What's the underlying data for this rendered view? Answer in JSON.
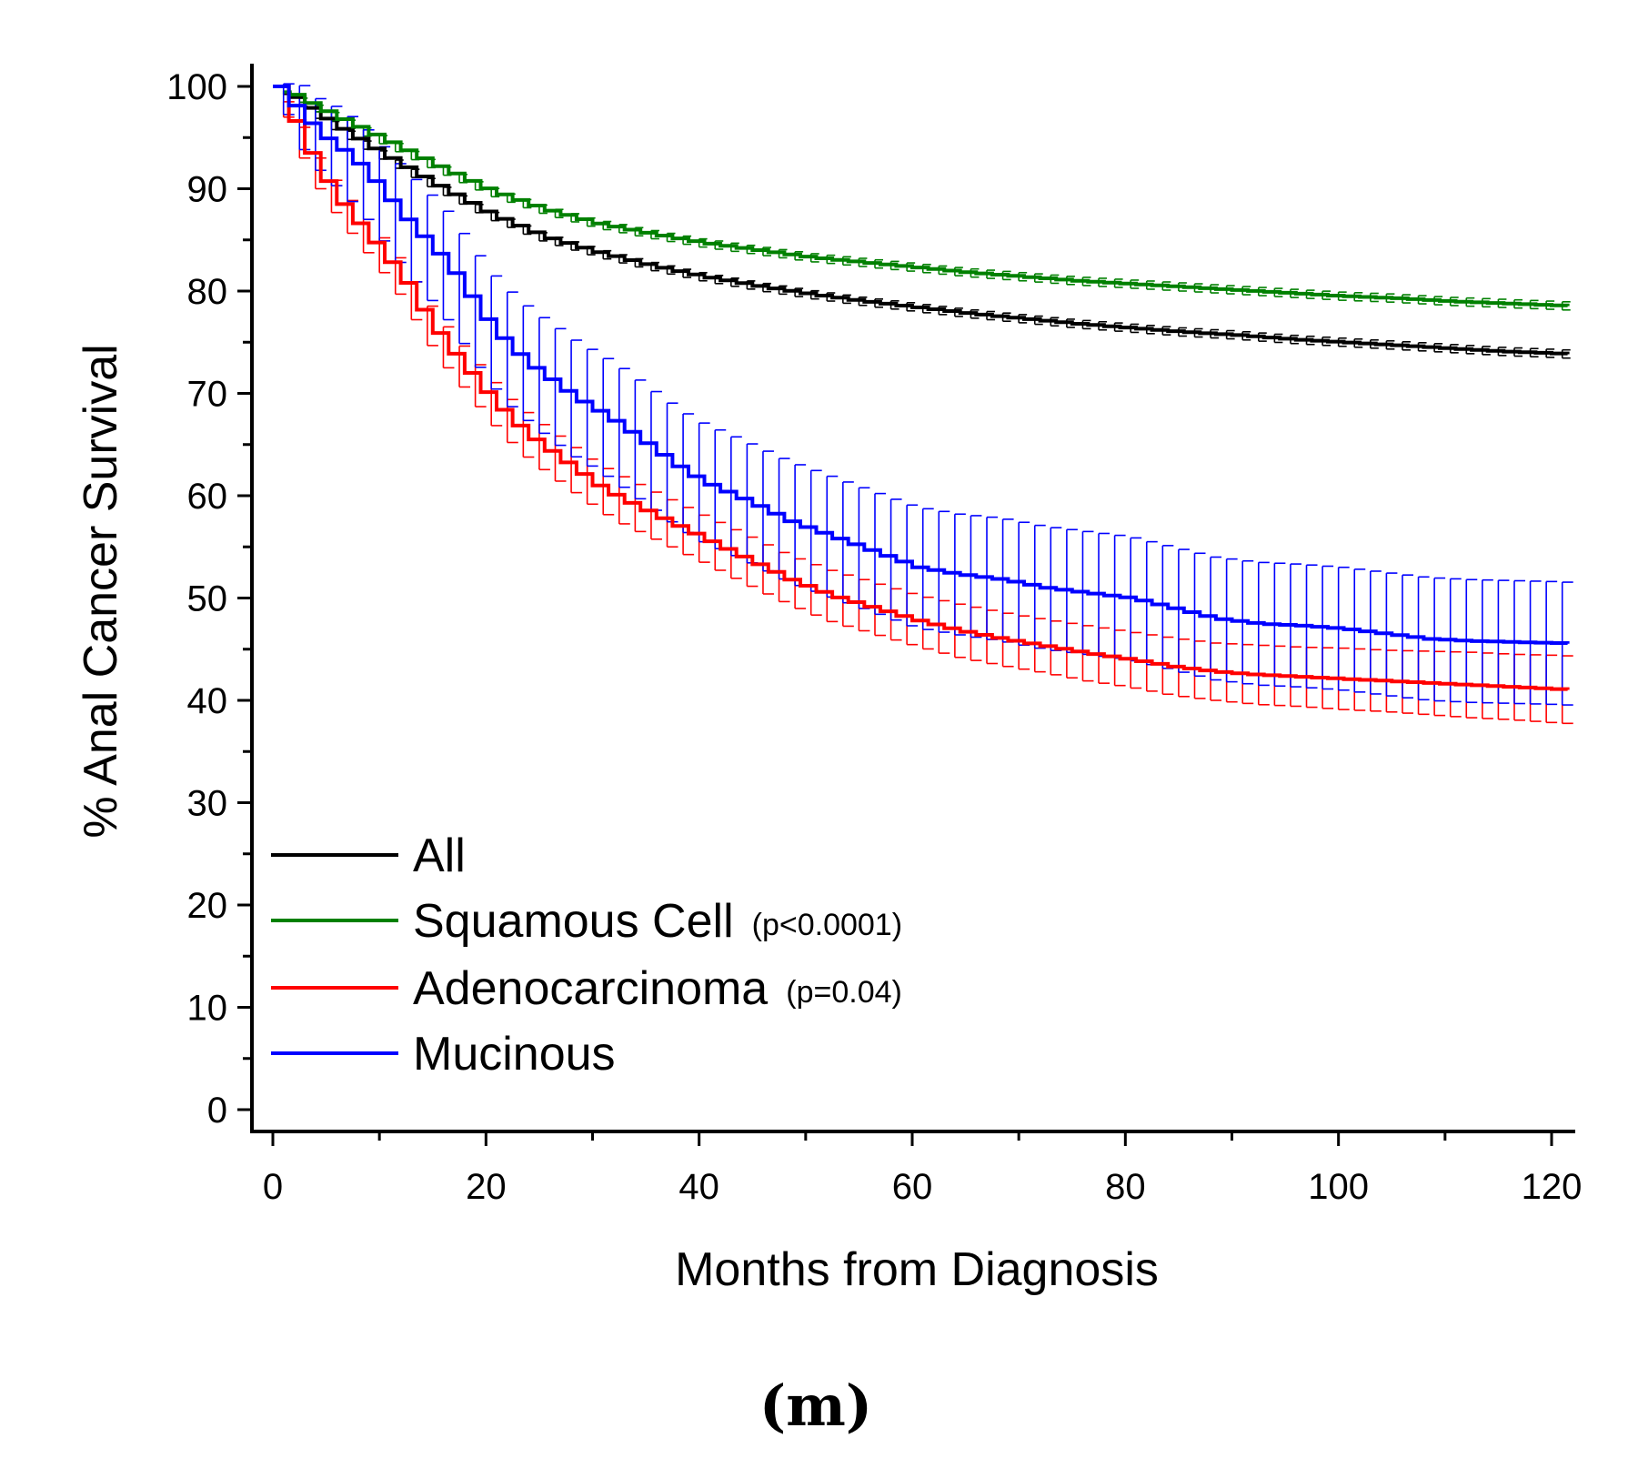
{
  "chart_data": {
    "type": "line",
    "xlabel": "Months from Diagnosis",
    "ylabel": "% Anal Cancer Survival",
    "caption": "(m)",
    "xlim": [
      -2,
      122
    ],
    "ylim": [
      -2,
      102
    ],
    "xticks": [
      "0",
      "20",
      "40",
      "60",
      "80",
      "100",
      "120"
    ],
    "yticks": [
      "0",
      "10",
      "20",
      "30",
      "40",
      "50",
      "60",
      "70",
      "80",
      "90",
      "100"
    ],
    "legend_position": "bottom-left",
    "series": [
      {
        "name": "All",
        "note": "",
        "color": "#000000",
        "x": [
          0,
          5,
          10,
          15,
          20,
          25,
          30,
          35,
          40,
          45,
          50,
          55,
          60,
          65,
          70,
          75,
          80,
          85,
          90,
          95,
          100,
          105,
          110,
          115,
          120,
          122
        ],
        "y": [
          100,
          96.5,
          93.3,
          90.3,
          87.5,
          85.3,
          83.8,
          82.5,
          81.4,
          80.5,
          79.7,
          79.0,
          78.4,
          77.8,
          77.3,
          76.8,
          76.4,
          76.0,
          75.7,
          75.3,
          75.0,
          74.7,
          74.4,
          74.1,
          73.9,
          73.8
        ],
        "err": [
          0,
          0.4,
          0.4,
          0.4,
          0.4,
          0.4,
          0.4,
          0.4,
          0.4,
          0.4,
          0.4,
          0.4,
          0.4,
          0.4,
          0.4,
          0.4,
          0.4,
          0.4,
          0.4,
          0.4,
          0.4,
          0.4,
          0.4,
          0.4,
          0.4,
          0.4
        ]
      },
      {
        "name": "Squamous Cell",
        "note": "(p<0.0001)",
        "color": "#008000",
        "x": [
          0,
          5,
          10,
          15,
          20,
          25,
          30,
          35,
          40,
          45,
          50,
          55,
          60,
          65,
          70,
          75,
          80,
          85,
          90,
          95,
          100,
          105,
          110,
          115,
          120,
          122
        ],
        "y": [
          100,
          97.3,
          94.8,
          92.2,
          89.8,
          88.0,
          86.6,
          85.6,
          84.7,
          84.0,
          83.3,
          82.8,
          82.3,
          81.8,
          81.4,
          81.0,
          80.7,
          80.4,
          80.1,
          79.8,
          79.5,
          79.3,
          79.0,
          78.8,
          78.6,
          78.5
        ],
        "err": [
          0,
          0.4,
          0.4,
          0.4,
          0.4,
          0.4,
          0.4,
          0.4,
          0.4,
          0.4,
          0.4,
          0.4,
          0.4,
          0.4,
          0.4,
          0.4,
          0.4,
          0.4,
          0.4,
          0.4,
          0.4,
          0.4,
          0.4,
          0.4,
          0.4,
          0.4
        ]
      },
      {
        "name": "Adenocarcinoma",
        "note": "(p=0.04)",
        "color": "#ff0000",
        "x": [
          0,
          2,
          4,
          6,
          8,
          10,
          12,
          14,
          16,
          18,
          20,
          22,
          24,
          26,
          28,
          30,
          32,
          34,
          36,
          38,
          40,
          44,
          48,
          52,
          56,
          60,
          64,
          68,
          72,
          76,
          80,
          84,
          88,
          92,
          96,
          100,
          104,
          108,
          112,
          116,
          120,
          122
        ],
        "y": [
          100,
          95.5,
          91.5,
          88.5,
          86.0,
          83.5,
          80.8,
          77.3,
          74.5,
          72.0,
          69.5,
          67.3,
          65.5,
          64.0,
          62.5,
          61.0,
          59.8,
          58.8,
          57.8,
          56.8,
          55.8,
          53.8,
          51.8,
          50.2,
          49.0,
          47.8,
          46.8,
          46.0,
          45.3,
          44.6,
          44.0,
          43.3,
          42.8,
          42.5,
          42.3,
          42.1,
          41.9,
          41.7,
          41.5,
          41.3,
          41.1,
          41.0
        ],
        "err": [
          0,
          1.5,
          1.5,
          1.6,
          1.6,
          1.7,
          1.8,
          1.9,
          2.0,
          2.0,
          2.1,
          2.1,
          2.2,
          2.2,
          2.2,
          2.2,
          2.3,
          2.3,
          2.3,
          2.3,
          2.3,
          2.4,
          2.4,
          2.5,
          2.5,
          2.5,
          2.6,
          2.6,
          2.6,
          2.7,
          2.7,
          2.8,
          2.8,
          2.9,
          2.9,
          3.0,
          3.0,
          3.1,
          3.2,
          3.2,
          3.3,
          3.3
        ]
      },
      {
        "name": "Mucinous",
        "note": "",
        "color": "#0000ff",
        "x": [
          0,
          2,
          4,
          6,
          8,
          10,
          12,
          14,
          16,
          18,
          20,
          22,
          24,
          26,
          28,
          30,
          32,
          34,
          36,
          38,
          40,
          44,
          48,
          52,
          56,
          60,
          64,
          68,
          72,
          76,
          80,
          84,
          88,
          92,
          96,
          100,
          104,
          108,
          112,
          116,
          120,
          122
        ],
        "y": [
          100,
          97.5,
          95.3,
          93.8,
          92.0,
          89.5,
          87.0,
          84.8,
          82.5,
          79.5,
          76.5,
          74.3,
          72.5,
          71.0,
          69.5,
          68.3,
          67.0,
          65.5,
          64.0,
          62.5,
          61.3,
          59.5,
          57.5,
          56.0,
          54.5,
          53.0,
          52.3,
          51.8,
          51.0,
          50.5,
          50.0,
          49.0,
          48.0,
          47.5,
          47.3,
          47.0,
          46.5,
          46.0,
          45.8,
          45.7,
          45.6,
          45.5
        ],
        "err": [
          0,
          3.0,
          3.5,
          4.0,
          4.3,
          4.6,
          4.9,
          5.1,
          5.3,
          5.4,
          5.5,
          5.6,
          5.6,
          5.7,
          5.7,
          5.7,
          5.8,
          5.8,
          5.8,
          5.8,
          5.8,
          5.8,
          5.9,
          5.9,
          5.9,
          5.9,
          5.9,
          6.0,
          6.0,
          6.0,
          6.0,
          6.0,
          6.0,
          6.0,
          6.0,
          6.0,
          6.0,
          6.0,
          6.0,
          6.0,
          6.0,
          6.0
        ]
      }
    ]
  }
}
